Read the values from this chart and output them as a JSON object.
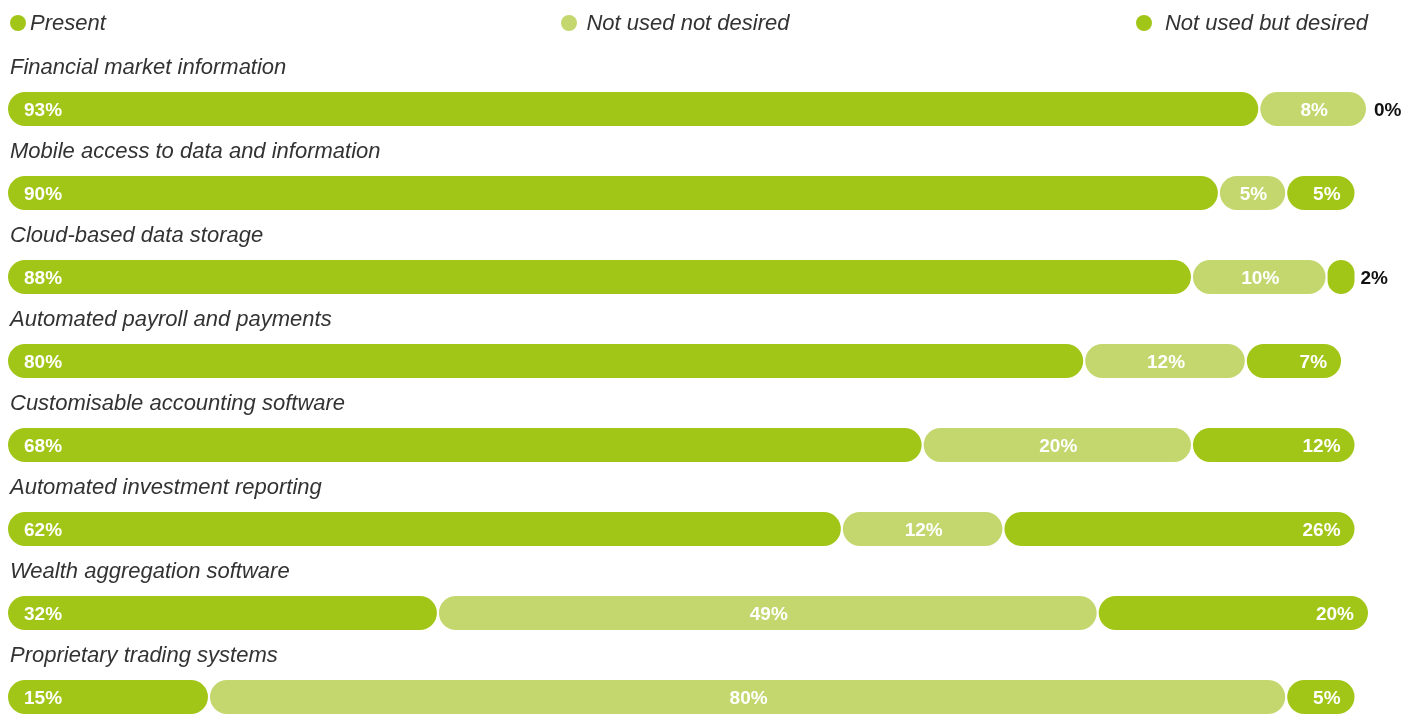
{
  "chart_data": {
    "type": "bar",
    "orientation": "horizontal",
    "stacked": true,
    "legend": "top",
    "categories": [
      "Financial market information",
      "Mobile access to data and information",
      "Cloud-based data storage",
      "Automated payroll and payments",
      "Customisable accounting software",
      "Automated investment reporting",
      "Wealth aggregation software",
      "Proprietary trading systems"
    ],
    "series": [
      {
        "name": "Present",
        "color": "#a2c617",
        "values": [
          93,
          90,
          88,
          80,
          68,
          62,
          32,
          15
        ],
        "value_labels": [
          "93%",
          "90%",
          "88%",
          "80%",
          "68%",
          "62%",
          "32%",
          "15%"
        ]
      },
      {
        "name": "Not used not desired",
        "color": "#c3d76e",
        "values": [
          8,
          5,
          10,
          12,
          20,
          12,
          49,
          80
        ],
        "value_labels": [
          "8%",
          "5%",
          "10%",
          "12%",
          "20%",
          "12%",
          "49%",
          "80%"
        ]
      },
      {
        "name": "Not used but desired",
        "color": "#a2c617",
        "values": [
          0,
          5,
          2,
          7,
          12,
          26,
          20,
          5
        ],
        "value_labels": [
          "0%",
          "5%",
          "2%",
          "7%",
          "12%",
          "26%",
          "20%",
          "5%"
        ]
      }
    ]
  }
}
